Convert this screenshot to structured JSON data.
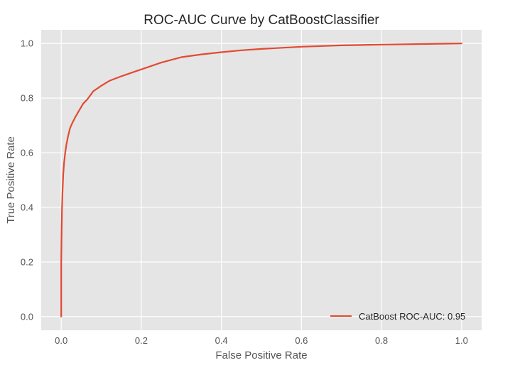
{
  "chart_data": {
    "type": "line",
    "title": "ROC-AUC Curve by CatBoostClassifier",
    "xlabel": "False Positive Rate",
    "ylabel": "True Positive Rate",
    "xlim": [
      -0.05,
      1.05
    ],
    "ylim": [
      -0.05,
      1.05
    ],
    "xticks": [
      0.0,
      0.2,
      0.4,
      0.6,
      0.8,
      1.0
    ],
    "yticks": [
      0.0,
      0.2,
      0.4,
      0.6,
      0.8,
      1.0
    ],
    "grid": true,
    "legend_position": "lower-right",
    "series": [
      {
        "name": "CatBoost ROC-AUC: 0.95",
        "color": "#e24a33",
        "x": [
          0.0,
          0.0,
          0.001,
          0.002,
          0.003,
          0.005,
          0.007,
          0.01,
          0.013,
          0.017,
          0.022,
          0.028,
          0.035,
          0.045,
          0.055,
          0.065,
          0.08,
          0.1,
          0.12,
          0.15,
          0.18,
          0.21,
          0.25,
          0.3,
          0.35,
          0.4,
          0.45,
          0.5,
          0.6,
          0.7,
          0.8,
          0.9,
          1.0
        ],
        "y": [
          0.0,
          0.2,
          0.3,
          0.4,
          0.45,
          0.52,
          0.56,
          0.6,
          0.63,
          0.66,
          0.69,
          0.71,
          0.73,
          0.755,
          0.78,
          0.795,
          0.825,
          0.845,
          0.863,
          0.88,
          0.895,
          0.91,
          0.93,
          0.95,
          0.96,
          0.968,
          0.975,
          0.98,
          0.988,
          0.993,
          0.996,
          0.998,
          1.0
        ]
      }
    ]
  },
  "colors": {
    "plot_bg": "#e5e5e5",
    "grid": "#ffffff",
    "text": "#262626",
    "tick_text": "#555555"
  }
}
